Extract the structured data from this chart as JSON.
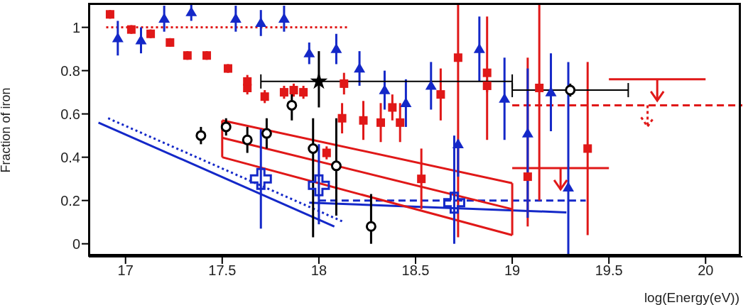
{
  "chart_data": {
    "type": "scatter",
    "xlabel": "log(Energy(eV))",
    "ylabel": "Fraction of iron",
    "xlim": [
      16.81,
      20.19
    ],
    "ylim": [
      -0.06,
      1.11
    ],
    "xticks": [
      17,
      17.5,
      18,
      18.5,
      19,
      19.5,
      20
    ],
    "yticks": [
      0,
      0.2,
      0.4,
      0.6,
      0.8,
      1
    ],
    "series": [
      {
        "type": "line",
        "color": "#1428c8",
        "line_style": "solid",
        "x": [
          16.86,
          18.08
        ],
        "values": [
          0.56,
          0.08
        ]
      },
      {
        "type": "line",
        "color": "#1428c8",
        "line_style": "dotted",
        "x": [
          16.91,
          18.13
        ],
        "values": [
          0.58,
          0.1
        ]
      },
      {
        "type": "line",
        "color": "#1428c8",
        "line_style": "solid",
        "x": [
          17.95,
          19.28
        ],
        "values": [
          0.19,
          0.145
        ]
      },
      {
        "type": "line",
        "color": "#1428c8",
        "line_style": "dashed",
        "x": [
          18.0,
          19.38
        ],
        "values": [
          0.2,
          0.2
        ]
      },
      {
        "type": "line",
        "color": "#e01818",
        "line_style": "dotted",
        "x": [
          16.9,
          18.15
        ],
        "values": [
          1.0,
          1.0
        ]
      },
      {
        "type": "line",
        "color": "#e01818",
        "line_style": "dashed",
        "x": [
          19.0,
          19.7,
          20.19
        ],
        "values": [
          0.64,
          0.64,
          0.64
        ]
      },
      {
        "type": "line",
        "color": "#e01818",
        "line_style": "solid",
        "x": [
          19.0,
          19.25,
          19.5
        ],
        "values": [
          0.35,
          0.35,
          0.35
        ]
      },
      {
        "type": "line",
        "color": "#e01818",
        "line_style": "solid",
        "x": [
          19.5,
          19.75,
          20.0
        ],
        "values": [
          0.76,
          0.76,
          0.76
        ]
      },
      {
        "type": "line",
        "color": "#e01818",
        "line_style": "solid",
        "x": [
          17.5,
          19.0
        ],
        "values": [
          0.57,
          0.28
        ]
      },
      {
        "type": "line",
        "color": "#e01818",
        "line_style": "solid",
        "x": [
          17.5,
          19.0
        ],
        "values": [
          0.49,
          0.16
        ]
      },
      {
        "type": "line",
        "color": "#e01818",
        "line_style": "solid",
        "x": [
          17.5,
          19.0
        ],
        "values": [
          0.4,
          0.04
        ]
      },
      {
        "type": "line",
        "color": "#e01818",
        "line_style": "solid",
        "x": [
          17.5,
          17.5
        ],
        "values": [
          0.4,
          0.57
        ]
      },
      {
        "type": "line",
        "color": "#e01818",
        "line_style": "solid",
        "x": [
          19.0,
          19.0
        ],
        "values": [
          0.04,
          0.28
        ]
      },
      {
        "marker": "square",
        "color": "#e01818",
        "x": [
          16.92,
          17.03,
          17.13,
          17.23,
          17.32,
          17.42,
          17.53,
          17.63,
          17.72,
          17.82,
          17.92,
          18.04,
          18.12,
          18.23,
          18.32,
          18.42,
          18.53,
          18.72,
          18.87,
          19.08
        ],
        "values": [
          1.06,
          0.99,
          0.97,
          0.93,
          0.87,
          0.87,
          0.81,
          0.72,
          0.68,
          0.7,
          0.7,
          0.42,
          0.58,
          0.57,
          0.56,
          0.56,
          0.3,
          0.86,
          0.73,
          0.31
        ],
        "errors": [
          0.02,
          0.02,
          0.02,
          0.02,
          0.02,
          0.02,
          0.02,
          0.03,
          0.03,
          0.03,
          0.03,
          0.03,
          0.07,
          0.09,
          0.09,
          0.09,
          0.14,
          [
            0.03,
            1.11
          ],
          0.03,
          [
            0.08,
            0.86
          ]
        ]
      },
      {
        "marker": "square",
        "color": "#e01818",
        "x": [
          17.63,
          17.87,
          18.13,
          18.38,
          18.63,
          18.87,
          19.14,
          19.39
        ],
        "values": [
          0.75,
          0.71,
          0.74,
          0.63,
          0.69,
          0.79,
          0.72,
          0.44
        ],
        "errors": [
          0.03,
          0.03,
          0.05,
          0.06,
          0.12,
          [
            0.48,
            1.05
          ],
          [
            0.2,
            1.11
          ],
          [
            0.04,
            0.84
          ]
        ]
      },
      {
        "marker": "triangle",
        "color": "#1428c8",
        "x": [
          16.96,
          17.08,
          17.2,
          17.34,
          17.57,
          17.7,
          17.82,
          17.95,
          18.09,
          18.21,
          18.34,
          18.45,
          18.58,
          18.72,
          18.83,
          18.96,
          19.08,
          19.2,
          19.29
        ],
        "values": [
          0.95,
          0.94,
          1.04,
          1.07,
          1.04,
          1.02,
          1.04,
          0.88,
          0.9,
          0.81,
          0.71,
          0.65,
          0.73,
          0.46,
          0.9,
          0.67,
          0.51,
          0.7,
          0.26
        ],
        "errors": [
          0.08,
          0.06,
          0.06,
          0.04,
          0.06,
          0.06,
          0.06,
          0.05,
          0.07,
          0.08,
          0.09,
          0.11,
          0.11,
          [
            0.31,
            0.48
          ],
          0.15,
          0.19,
          [
            0.12,
            0.81
          ],
          0.18,
          [
            -0.05,
            0.84
          ]
        ]
      },
      {
        "marker": "circle",
        "color": "#000000",
        "x": [
          17.39,
          17.52,
          17.63,
          17.73,
          17.86,
          17.97,
          18.09,
          18.27,
          19.3
        ],
        "values": [
          0.5,
          0.54,
          0.48,
          0.51,
          0.64,
          0.44,
          0.36,
          0.08,
          0.71
        ],
        "errors": [
          0.04,
          0.04,
          0.06,
          0.07,
          0.07,
          [
            0.03,
            0.58
          ],
          [
            0.13,
            0.58
          ],
          [
            0.0,
            0.23
          ],
          0.03
        ],
        "xerrors": [
          null,
          null,
          null,
          null,
          null,
          null,
          null,
          null,
          0.3
        ]
      },
      {
        "marker": "star",
        "color": "#000000",
        "x": [
          18.0
        ],
        "values": [
          0.75
        ],
        "errors": [
          [
            0.63,
            0.89
          ]
        ],
        "xerrors": [
          [
            17.7,
            19.0
          ]
        ]
      },
      {
        "marker": "cross",
        "color": "#1428c8",
        "x": [
          17.7,
          18.0,
          18.7
        ],
        "values": [
          0.3,
          0.27,
          0.19
        ],
        "errors": [
          [
            0.07,
            0.53
          ],
          [
            0.09,
            0.46
          ],
          [
            0.0,
            0.5
          ]
        ]
      }
    ]
  }
}
